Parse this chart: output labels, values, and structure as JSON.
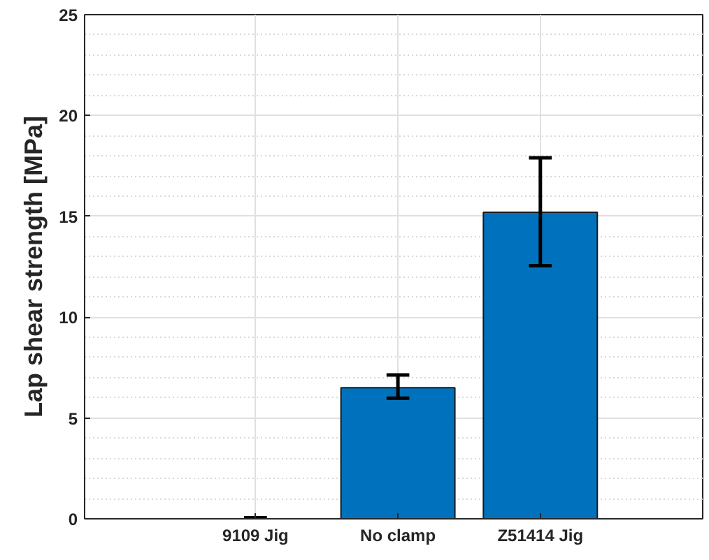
{
  "chart_data": {
    "type": "bar",
    "ylabel": "Lap shear strength [MPa]",
    "categories": [
      "9109 Jig",
      "No clamp",
      "Z51414 Jig"
    ],
    "values": [
      0,
      6.5,
      15.2
    ],
    "errors": [
      0.05,
      [
        5.98,
        7.13
      ],
      [
        12.55,
        17.9
      ]
    ],
    "color": "#0072bd",
    "ylim": [
      0,
      25
    ],
    "yticks": [
      0,
      5,
      10,
      15,
      20,
      25
    ],
    "grid": true
  }
}
